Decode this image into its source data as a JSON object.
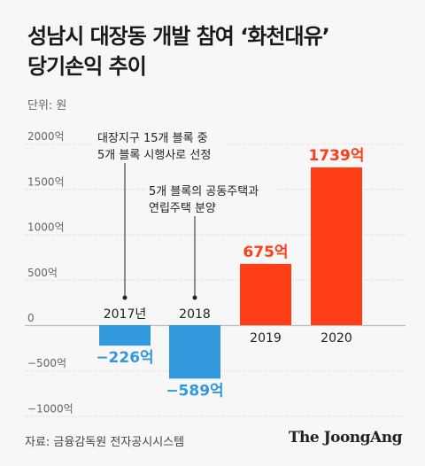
{
  "title_line1": "성남시 대장동 개발 참여 ‘화천대유’",
  "title_line2": "당기손익 추이",
  "unit_label": "단위: 원",
  "source": "자료: 금융감독원 전자공시시스템",
  "logo": "The JoongAng",
  "colors": {
    "positive": "#ff3d17",
    "negative": "#3399dd",
    "grid": "#cccccc",
    "axis": "#bbbbbb"
  },
  "annotations": [
    {
      "lines": [
        "대장지구 15개 블록 중",
        "5개 블록 시행사로 선정"
      ],
      "year": "2017년"
    },
    {
      "lines": [
        "5개 블록의 공동주택과",
        "연립주택 분양"
      ],
      "year": "2018"
    }
  ],
  "chart_data": {
    "type": "bar",
    "categories": [
      "2017년",
      "2018",
      "2019",
      "2020"
    ],
    "values": [
      -226,
      -589,
      675,
      1739
    ],
    "value_labels": [
      "−226억",
      "−589억",
      "675억",
      "1739억"
    ],
    "ytick_labels": [
      "2000억",
      "1500억",
      "1000억",
      "500억",
      "0",
      "−500억",
      "−1000억"
    ],
    "yticks": [
      2000,
      1500,
      1000,
      500,
      0,
      -500,
      -1000
    ],
    "ylim": [
      -1000,
      2000
    ],
    "grid": true
  }
}
